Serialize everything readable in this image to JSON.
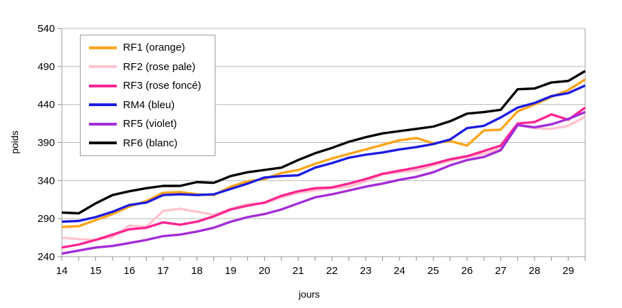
{
  "chart_data": {
    "type": "line",
    "title": "",
    "xlabel": "jours",
    "ylabel": "poids",
    "xlim": [
      14,
      29.5
    ],
    "ylim": [
      240,
      540
    ],
    "y_ticks": [
      240,
      290,
      340,
      390,
      440,
      490,
      540
    ],
    "x_tick_labels": [
      14,
      15,
      16,
      17,
      18,
      19,
      20,
      21,
      22,
      23,
      24,
      25,
      26,
      27,
      28,
      29
    ],
    "x_minor_tick_step": 0.5,
    "grid": "horizontal",
    "legend_position": "inside-top-left",
    "x": [
      14,
      14.5,
      15,
      15.5,
      16,
      16.5,
      17,
      17.5,
      18,
      18.5,
      19,
      19.5,
      20,
      20.5,
      21,
      21.5,
      22,
      22.5,
      23,
      23.5,
      24,
      24.5,
      25,
      25.5,
      26,
      26.5,
      27,
      27.5,
      28,
      28.5,
      29,
      29.5
    ],
    "series": [
      {
        "name": "RF1",
        "label": "RF1 (orange)",
        "color": "#ffa419",
        "values": [
          279,
          280,
          288,
          296,
          306,
          313,
          324,
          325,
          322,
          321,
          332,
          339,
          342,
          350,
          354,
          362,
          369,
          375,
          381,
          387,
          393,
          396,
          389,
          392,
          386,
          406,
          407,
          431,
          440,
          450,
          459,
          473
        ]
      },
      {
        "name": "RF2",
        "label": "RF2 (rose pale)",
        "color": "#ffc3ce",
        "values": [
          265,
          263,
          262,
          266,
          281,
          279,
          300,
          303,
          299,
          295,
          303,
          309,
          310,
          318,
          324,
          327,
          330,
          332,
          339,
          348,
          351,
          353,
          360,
          366,
          371,
          375,
          382,
          413,
          409,
          408,
          412,
          424
        ]
      },
      {
        "name": "RF3",
        "label": "RF3 (rose foncé)",
        "color": "#ff2491",
        "values": [
          252,
          256,
          262,
          269,
          276,
          278,
          285,
          282,
          286,
          293,
          302,
          307,
          311,
          320,
          326,
          330,
          331,
          336,
          342,
          349,
          353,
          357,
          362,
          368,
          372,
          379,
          386,
          415,
          417,
          427,
          420,
          436
        ]
      },
      {
        "name": "RM4",
        "label": "RM4 (bleu)",
        "color": "#1c1ce0",
        "values": [
          286,
          287,
          292,
          299,
          308,
          311,
          321,
          322,
          321,
          322,
          329,
          336,
          344,
          346,
          347,
          357,
          363,
          370,
          374,
          377,
          381,
          384,
          388,
          394,
          409,
          412,
          423,
          436,
          442,
          451,
          455,
          465
        ]
      },
      {
        "name": "RF5",
        "label": "RF5 (violet)",
        "color": "#a32cd9",
        "values": [
          244,
          248,
          252,
          254,
          258,
          262,
          267,
          269,
          273,
          278,
          286,
          292,
          296,
          302,
          310,
          318,
          322,
          327,
          332,
          336,
          341,
          345,
          351,
          360,
          367,
          371,
          380,
          413,
          410,
          414,
          421,
          430
        ]
      },
      {
        "name": "RF6",
        "label": "RF6 (blanc)",
        "color": "#000000",
        "values": [
          298,
          297,
          310,
          321,
          326,
          330,
          333,
          333,
          338,
          337,
          346,
          351,
          354,
          357,
          367,
          376,
          383,
          391,
          397,
          402,
          405,
          408,
          411,
          418,
          428,
          430,
          433,
          460,
          461,
          469,
          471,
          484
        ]
      }
    ]
  },
  "legend": {
    "items": [
      {
        "label": "RF1 (orange)",
        "color": "#ffa419"
      },
      {
        "label": "RF2 (rose pale)",
        "color": "#ffc3ce"
      },
      {
        "label": "RF3 (rose foncé)",
        "color": "#ff2491"
      },
      {
        "label": "RM4 (bleu)",
        "color": "#1c1ce0"
      },
      {
        "label": "RF5 (violet)",
        "color": "#a32cd9"
      },
      {
        "label": "RF6 (blanc)",
        "color": "#000000"
      }
    ]
  },
  "style": {
    "grid_color": "#b9b9b9",
    "border_color": "#9c9c9c",
    "tick_color": "#8a8a8a",
    "line_width": 3.4
  }
}
